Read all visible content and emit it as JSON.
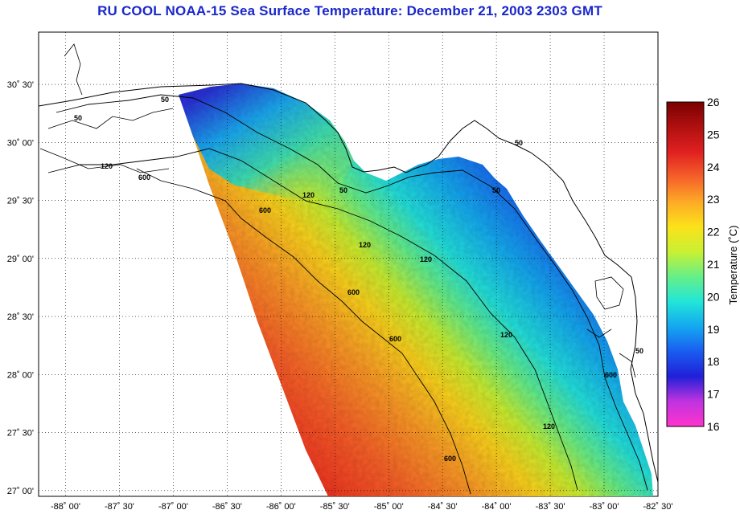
{
  "title": "RU COOL  NOAA-15  Sea Surface Temperature:  December 21, 2003 2303 GMT",
  "map": {
    "lon_labels": [
      "-88˚ 00'",
      "-87˚ 30'",
      "-87˚ 00'",
      "-86˚ 30'",
      "-86˚ 00'",
      "-85˚ 30'",
      "-85˚ 00'",
      "-84˚ 30'",
      "-84˚ 00'",
      "-83˚ 30'",
      "-83˚ 00'",
      "-82˚ 30'"
    ],
    "lat_labels": [
      "30˚ 30'",
      "30˚ 00'",
      "29˚ 30'",
      "29˚ 00'",
      "28˚ 30'",
      "28˚ 00'",
      "27˚ 30'",
      "27˚ 00'"
    ],
    "lon_range": [
      -88.25,
      -82.5
    ],
    "lat_range": [
      26.95,
      30.95
    ],
    "contour_labels": [
      "50",
      "50",
      "50",
      "50",
      "50",
      "50",
      "120",
      "120",
      "120",
      "120",
      "120",
      "120",
      "600",
      "600",
      "600",
      "600",
      "600",
      "600"
    ]
  },
  "colorbar": {
    "label": "Temperature (˚C)",
    "ticks": [
      "26",
      "25",
      "24",
      "23",
      "22",
      "21",
      "20",
      "19",
      "18",
      "17",
      "16"
    ],
    "range": [
      16,
      26
    ],
    "colors": [
      "#ff33cc",
      "#c033e0",
      "#2020d8",
      "#1a5cf0",
      "#14a8f0",
      "#22e6d8",
      "#66ef88",
      "#c8f033",
      "#fbe21a",
      "#fdaa26",
      "#f5602a",
      "#e02020",
      "#b01010",
      "#7a0000"
    ]
  }
}
